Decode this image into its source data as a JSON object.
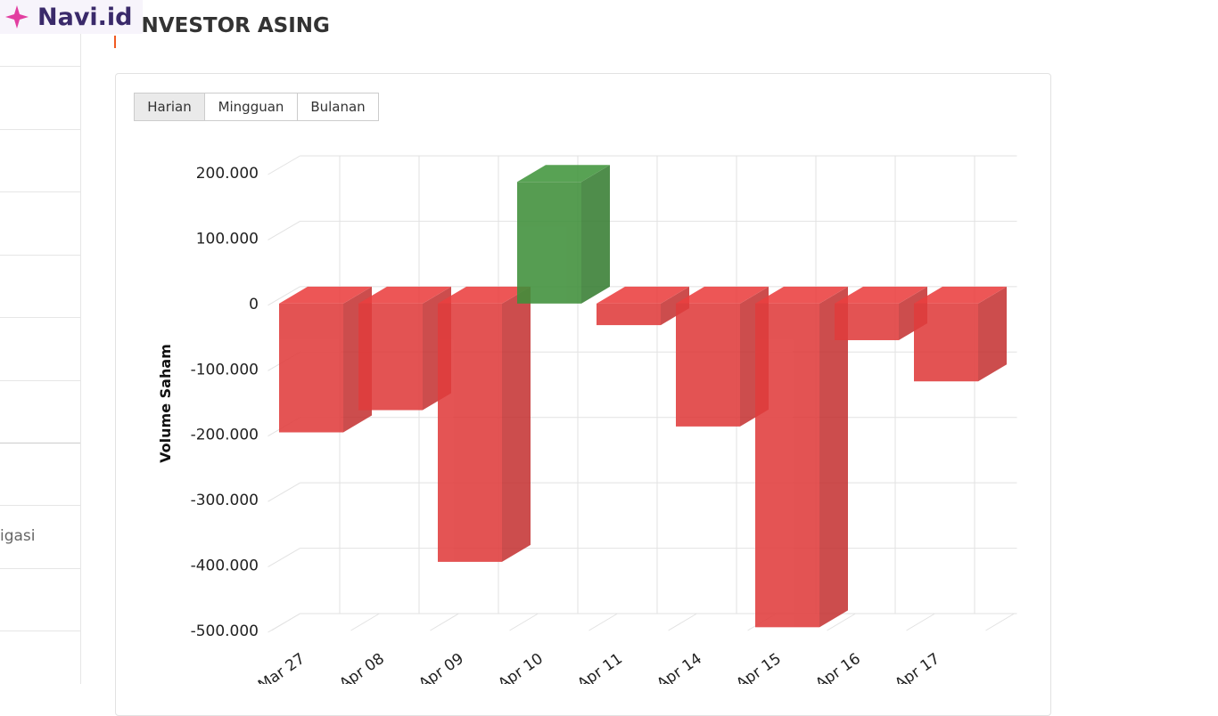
{
  "logo": "Navi.id",
  "sidebar": {
    "items": [
      "igasi"
    ]
  },
  "title": "INVESTOR ASING",
  "tabs": [
    "Harian",
    "Mingguan",
    "Bulanan"
  ],
  "chart_data": {
    "type": "bar3d",
    "y_label": "Volume Saham",
    "categories": [
      "Mar 27",
      "Apr 08",
      "Apr 09",
      "Apr 10",
      "Apr 11",
      "Apr 14",
      "Apr 15",
      "Apr 16",
      "Apr 17"
    ],
    "values": [
      -197000,
      -163000,
      -395000,
      186000,
      -33000,
      -188000,
      -495000,
      -56000,
      -119000
    ],
    "color": "#e03c3c",
    "positive_color": "#3f8f3a",
    "ylim": [
      -500000,
      200000
    ],
    "yticks": [
      {
        "value": 200000,
        "label": "200.000"
      },
      {
        "value": 100000,
        "label": "100.000"
      },
      0,
      {
        "value": -100000,
        "label": "-100.000"
      },
      {
        "value": -200000,
        "label": "-200.000"
      },
      {
        "value": -300000,
        "label": "-300.000"
      },
      {
        "value": -400000,
        "label": "-400.000"
      },
      {
        "value": -500000,
        "label": "-500.000"
      }
    ],
    "grid": true
  }
}
